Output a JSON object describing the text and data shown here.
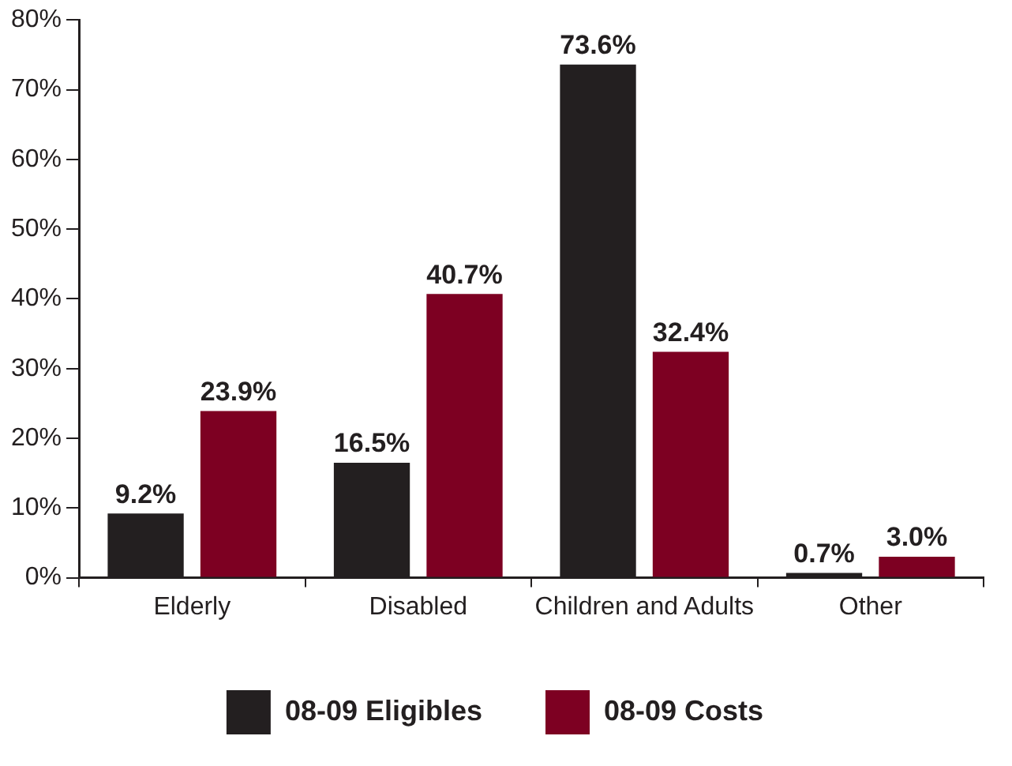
{
  "chart_data": {
    "type": "bar",
    "categories": [
      "Elderly",
      "Disabled",
      "Children and Adults",
      "Other"
    ],
    "series": [
      {
        "name": "08-09 Eligibles",
        "color": "#231f20",
        "values": [
          9.2,
          16.5,
          73.6,
          0.7
        ],
        "value_labels": [
          "9.2%",
          "16.5%",
          "73.6%",
          "0.7%"
        ]
      },
      {
        "name": "08-09 Costs",
        "color": "#7d0022",
        "values": [
          23.9,
          40.7,
          32.4,
          3.0
        ],
        "value_labels": [
          "23.9%",
          "40.7%",
          "32.4%",
          "3.0%"
        ]
      }
    ],
    "ylim": [
      0,
      80
    ],
    "yticks": [
      {
        "value": 0,
        "label": "0%"
      },
      {
        "value": 10,
        "label": "10%"
      },
      {
        "value": 20,
        "label": "20%"
      },
      {
        "value": 30,
        "label": "30%"
      },
      {
        "value": 40,
        "label": "40%"
      },
      {
        "value": 50,
        "label": "50%"
      },
      {
        "value": 60,
        "label": "60%"
      },
      {
        "value": 70,
        "label": "70%"
      },
      {
        "value": 80,
        "label": "80%"
      }
    ],
    "grid": false,
    "legend": "bottom"
  }
}
